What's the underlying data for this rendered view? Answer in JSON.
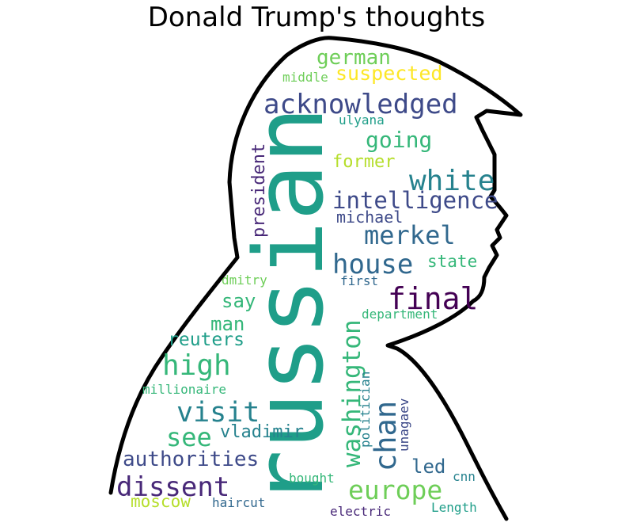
{
  "title": "Donald Trump's thoughts",
  "words": [
    {
      "text": "russian",
      "color": "#1f9e89"
    },
    {
      "text": "acknowledged",
      "color": "#3e4a89"
    },
    {
      "text": "white",
      "color": "#26828e"
    },
    {
      "text": "intelligence",
      "color": "#3e4a89"
    },
    {
      "text": "merkel",
      "color": "#31688e"
    },
    {
      "text": "house",
      "color": "#31688e"
    },
    {
      "text": "final",
      "color": "#440154"
    },
    {
      "text": "europe",
      "color": "#6ece58"
    },
    {
      "text": "dissent",
      "color": "#482878"
    },
    {
      "text": "washington",
      "color": "#35b779"
    },
    {
      "text": "chan",
      "color": "#31688e"
    },
    {
      "text": "visit",
      "color": "#26828e"
    },
    {
      "text": "high",
      "color": "#35b779"
    },
    {
      "text": "see",
      "color": "#35b779"
    },
    {
      "text": "authorities",
      "color": "#3e4a89"
    },
    {
      "text": "going",
      "color": "#35b779"
    },
    {
      "text": "german",
      "color": "#6ece58"
    },
    {
      "text": "suspected",
      "color": "#fde725"
    },
    {
      "text": "president",
      "color": "#482878"
    },
    {
      "text": "former",
      "color": "#b5de2b"
    },
    {
      "text": "michael",
      "color": "#3e4a89"
    },
    {
      "text": "state",
      "color": "#35b779"
    },
    {
      "text": "say",
      "color": "#35b779"
    },
    {
      "text": "man",
      "color": "#35b779"
    },
    {
      "text": "reuters",
      "color": "#1f9e89"
    },
    {
      "text": "vladimir",
      "color": "#26828e"
    },
    {
      "text": "led",
      "color": "#31688e"
    },
    {
      "text": "moscow",
      "color": "#b5de2b"
    },
    {
      "text": "middle",
      "color": "#6ece58"
    },
    {
      "text": "ulyana",
      "color": "#1f9e89"
    },
    {
      "text": "dmitry",
      "color": "#6ece58"
    },
    {
      "text": "first",
      "color": "#31688e"
    },
    {
      "text": "department",
      "color": "#35b779"
    },
    {
      "text": "millionaire",
      "color": "#35b779"
    },
    {
      "text": "politician",
      "color": "#26828e"
    },
    {
      "text": "unagaev",
      "color": "#3e4a89"
    },
    {
      "text": "bought",
      "color": "#35b779"
    },
    {
      "text": "cnn",
      "color": "#26828e"
    },
    {
      "text": "haircut",
      "color": "#31688e"
    },
    {
      "text": "electric",
      "color": "#482878"
    },
    {
      "text": "Length",
      "color": "#1f9e89"
    }
  ]
}
